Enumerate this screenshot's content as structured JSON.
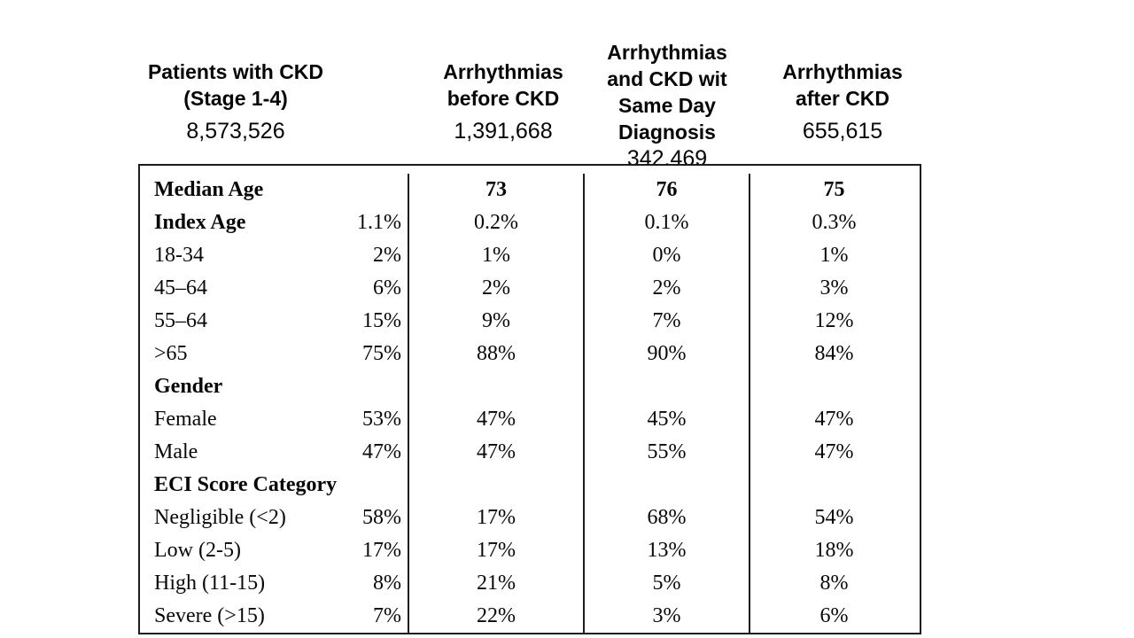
{
  "page": {
    "background": "#ffffff",
    "text_color": "#060606",
    "border_color": "#1c1c1c"
  },
  "header": {
    "columns": [
      {
        "title": "Patients with CKD\n(Stage 1-4)",
        "count": "8,573,526"
      },
      {
        "title": "Arrhythmias\nbefore CKD",
        "count": "1,391,668"
      },
      {
        "title": "Arrhythmias\nand CKD wit\nSame Day\nDiagnosis",
        "count": "342,469"
      },
      {
        "title": "Arrhythmias\nafter CKD",
        "count": "655,615"
      }
    ]
  },
  "table": {
    "rows": [
      {
        "label": "Median Age",
        "label_bold": true,
        "values_bold": true,
        "values": [
          "",
          "73",
          "76",
          "75"
        ]
      },
      {
        "label": "Index Age",
        "label_bold": true,
        "values": [
          "1.1%",
          "0.2%",
          "0.1%",
          "0.3%"
        ]
      },
      {
        "label": "18-34",
        "values": [
          "2%",
          "1%",
          "0%",
          "1%"
        ]
      },
      {
        "label": "45–64",
        "values": [
          "6%",
          "2%",
          "2%",
          "3%"
        ]
      },
      {
        "label": "55–64",
        "values": [
          "15%",
          "9%",
          "7%",
          "12%"
        ]
      },
      {
        "label": ">65",
        "values": [
          "75%",
          "88%",
          "90%",
          "84%"
        ]
      },
      {
        "label": "Gender",
        "label_bold": true,
        "values": [
          "",
          "",
          "",
          ""
        ]
      },
      {
        "label": "Female",
        "values": [
          "53%",
          "47%",
          "45%",
          "47%"
        ]
      },
      {
        "label": "Male",
        "values": [
          "47%",
          "47%",
          "55%",
          "47%"
        ]
      },
      {
        "label": "ECI Score Category",
        "label_bold": true,
        "values": [
          "",
          "",
          "",
          ""
        ]
      },
      {
        "label": "Negligible (<2)",
        "values": [
          "58%",
          "17%",
          "68%",
          "54%"
        ]
      },
      {
        "label": "Low (2-5)",
        "values": [
          "17%",
          "17%",
          "13%",
          "18%"
        ]
      },
      {
        "label": "High (11-15)",
        "values": [
          "8%",
          "21%",
          "5%",
          "8%"
        ]
      },
      {
        "label": "Severe (>15)",
        "values": [
          "7%",
          "22%",
          "3%",
          "6%"
        ]
      }
    ]
  }
}
